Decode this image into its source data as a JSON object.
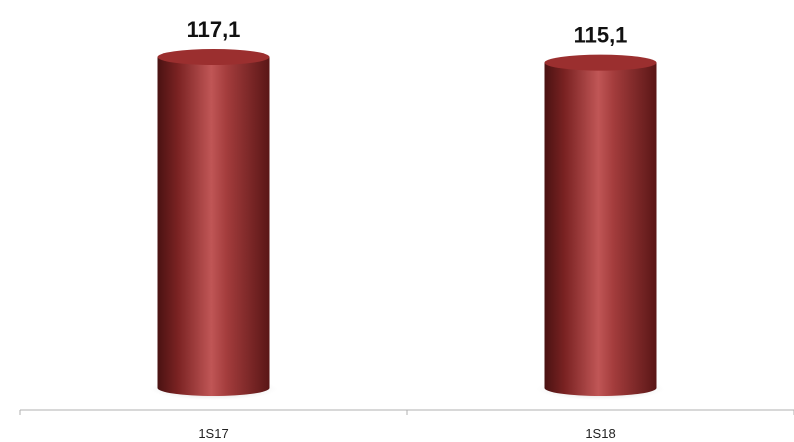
{
  "chart_data": {
    "type": "bar",
    "style": "3d-cylinder",
    "categories": [
      "1S17",
      "1S18"
    ],
    "values": [
      117.1,
      115.1
    ],
    "value_labels": [
      "117,1",
      "115,1"
    ],
    "title": "",
    "xlabel": "",
    "ylabel": "",
    "grid": false,
    "legend": "none",
    "colors": {
      "bar_main": "#8e2a2a",
      "bar_light": "#c05656",
      "bar_dark": "#4a1212",
      "top_cap": "#9b2f2f",
      "axis": "#b0b0b0",
      "shadow": "#bfbfbf"
    }
  }
}
